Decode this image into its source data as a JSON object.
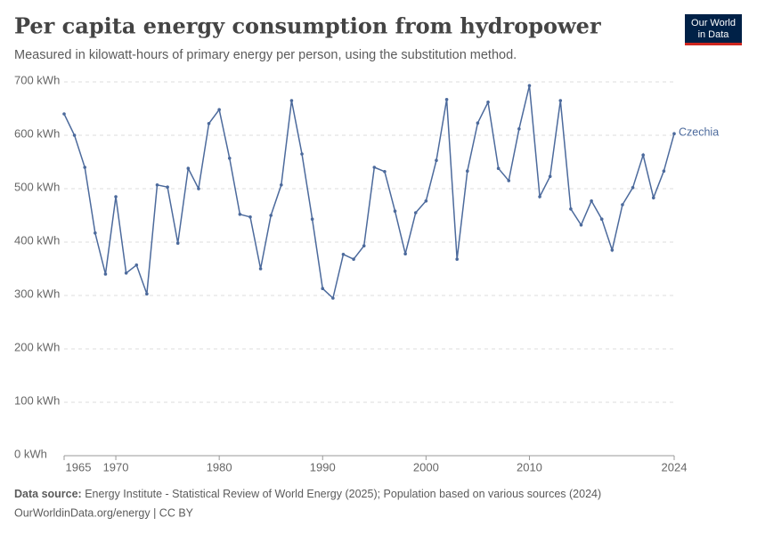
{
  "chart_data": {
    "type": "line",
    "title": "Per capita energy consumption from hydropower",
    "subtitle": "Measured in kilowatt-hours of primary energy per person, using the substitution method.",
    "x": [
      1965,
      1966,
      1967,
      1968,
      1969,
      1970,
      1971,
      1972,
      1973,
      1974,
      1975,
      1976,
      1977,
      1978,
      1979,
      1980,
      1981,
      1982,
      1983,
      1984,
      1985,
      1986,
      1987,
      1988,
      1989,
      1990,
      1991,
      1992,
      1993,
      1994,
      1995,
      1996,
      1997,
      1998,
      1999,
      2000,
      2001,
      2002,
      2003,
      2004,
      2005,
      2006,
      2007,
      2008,
      2009,
      2010,
      2011,
      2012,
      2013,
      2014,
      2015,
      2016,
      2017,
      2018,
      2019,
      2020,
      2021,
      2022,
      2023,
      2024
    ],
    "series": [
      {
        "name": "Czechia",
        "color": "#4c6a9c",
        "values": [
          640,
          600,
          540,
          417,
          340,
          485,
          342,
          357,
          303,
          507,
          503,
          398,
          538,
          500,
          622,
          648,
          557,
          452,
          447,
          350,
          450,
          507,
          665,
          565,
          443,
          313,
          295,
          377,
          368,
          393,
          540,
          532,
          458,
          378,
          455,
          477,
          553,
          667,
          368,
          533,
          623,
          662,
          538,
          515,
          612,
          693,
          485,
          523,
          665,
          462,
          432,
          477,
          443,
          385,
          470,
          502,
          563,
          483,
          533,
          603
        ]
      }
    ],
    "xlim": [
      1965,
      2024
    ],
    "xticks": [
      1965,
      1970,
      1980,
      1990,
      2000,
      2010,
      2024
    ],
    "ylim": [
      0,
      700
    ],
    "yticks": [
      {
        "value": 0,
        "label": "0 kWh"
      },
      {
        "value": 100,
        "label": "100 kWh"
      },
      {
        "value": 200,
        "label": "200 kWh"
      },
      {
        "value": 300,
        "label": "300 kWh"
      },
      {
        "value": 400,
        "label": "400 kWh"
      },
      {
        "value": 500,
        "label": "500 kWh"
      },
      {
        "value": 600,
        "label": "600 kWh"
      },
      {
        "value": 700,
        "label": "700 kWh"
      }
    ],
    "grid": true,
    "source_label": "Data source:",
    "source": "Energy Institute - Statistical Review of World Energy (2025); Population based on various sources (2024)",
    "footer": "OurWorldinData.org/energy | CC BY",
    "logo": [
      "Our World",
      "in Data"
    ]
  }
}
